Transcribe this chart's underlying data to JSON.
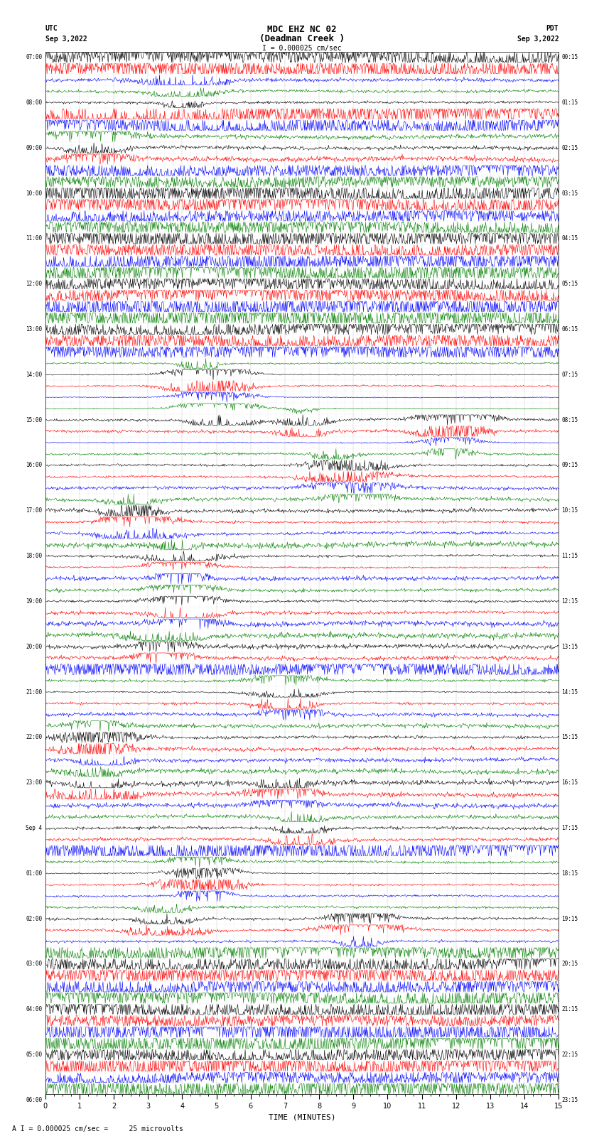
{
  "title_line1": "MDC EHZ NC 02",
  "title_line2": "(Deadman Creek )",
  "scale_label": "I = 0.000025 cm/sec",
  "utc_label": "UTC",
  "utc_date": "Sep 3,2022",
  "pdt_label": "PDT",
  "pdt_date": "Sep 3,2022",
  "bottom_label": "A I = 0.000025 cm/sec =     25 microvolts",
  "xlabel": "TIME (MINUTES)",
  "left_times": [
    "07:00",
    "",
    "",
    "",
    "08:00",
    "",
    "",
    "",
    "09:00",
    "",
    "",
    "",
    "10:00",
    "",
    "",
    "",
    "11:00",
    "",
    "",
    "",
    "12:00",
    "",
    "",
    "",
    "13:00",
    "",
    "",
    "",
    "14:00",
    "",
    "",
    "",
    "15:00",
    "",
    "",
    "",
    "16:00",
    "",
    "",
    "",
    "17:00",
    "",
    "",
    "",
    "18:00",
    "",
    "",
    "",
    "19:00",
    "",
    "",
    "",
    "20:00",
    "",
    "",
    "",
    "21:00",
    "",
    "",
    "",
    "22:00",
    "",
    "",
    "",
    "23:00",
    "",
    "",
    "",
    "Sep 4",
    "",
    "",
    "",
    "01:00",
    "",
    "",
    "",
    "02:00",
    "",
    "",
    "",
    "03:00",
    "",
    "",
    "",
    "04:00",
    "",
    "",
    "",
    "05:00",
    "",
    "",
    "",
    "06:00",
    "",
    "",
    ""
  ],
  "right_times": [
    "00:15",
    "",
    "",
    "",
    "01:15",
    "",
    "",
    "",
    "02:15",
    "",
    "",
    "",
    "03:15",
    "",
    "",
    "",
    "04:15",
    "",
    "",
    "",
    "05:15",
    "",
    "",
    "",
    "06:15",
    "",
    "",
    "",
    "07:15",
    "",
    "",
    "",
    "08:15",
    "",
    "",
    "",
    "09:15",
    "",
    "",
    "",
    "10:15",
    "",
    "",
    "",
    "11:15",
    "",
    "",
    "",
    "12:15",
    "",
    "",
    "",
    "13:15",
    "",
    "",
    "",
    "14:15",
    "",
    "",
    "",
    "15:15",
    "",
    "",
    "",
    "16:15",
    "",
    "",
    "",
    "17:15",
    "",
    "",
    "",
    "18:15",
    "",
    "",
    "",
    "19:15",
    "",
    "",
    "",
    "20:15",
    "",
    "",
    "",
    "21:15",
    "",
    "",
    "",
    "22:15",
    "",
    "",
    "",
    "23:15",
    "",
    "",
    ""
  ],
  "trace_colors": [
    "black",
    "red",
    "blue",
    "green"
  ],
  "num_rows": 92,
  "num_cols": 900,
  "bg_color": "white",
  "trace_linewidth": 0.4,
  "noise_scale": 0.3,
  "grid_color": "#888888",
  "xmin": 0,
  "xmax": 15
}
